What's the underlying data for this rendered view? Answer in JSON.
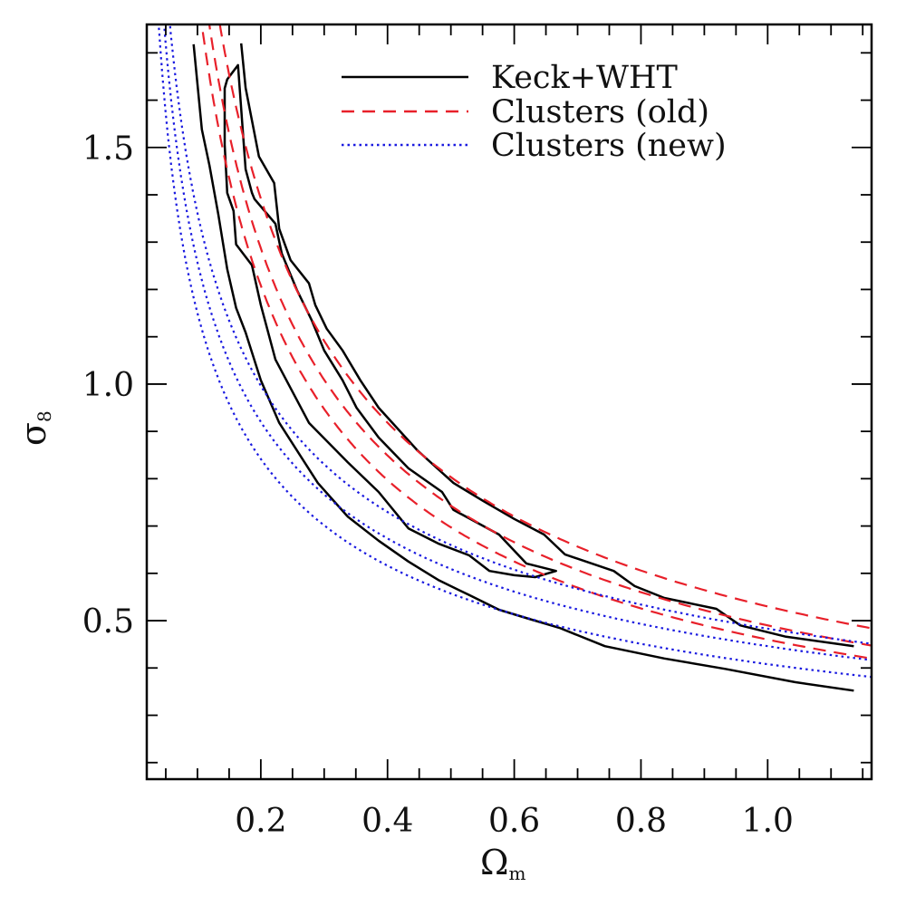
{
  "chart_data": {
    "type": "line",
    "title": "",
    "xlabel": "Ω",
    "xlabel_sub": "m",
    "ylabel": "σ",
    "ylabel_sub": "8",
    "xlim": [
      0.02,
      1.164
    ],
    "ylim": [
      0.165,
      1.76
    ],
    "xticks": [
      0.2,
      0.4,
      0.6,
      0.8,
      1.0
    ],
    "xtick_labels": [
      "0.2",
      "0.4",
      "0.6",
      "0.8",
      "1.0"
    ],
    "x_minor_step": 0.05,
    "yticks": [
      0.5,
      1.0,
      1.5
    ],
    "ytick_labels": [
      "0.5",
      "1.0",
      "1.5"
    ],
    "y_minor_step": 0.1,
    "grid": false,
    "legend_position": "top-right",
    "legend": [
      {
        "label": "Keck+WHT",
        "style": "solid",
        "color": "#000000"
      },
      {
        "label": "Clusters (old)",
        "style": "dashed",
        "color": "#e8202a"
      },
      {
        "label": "Clusters (new)",
        "style": "dotted",
        "color": "#1a1ae0"
      }
    ],
    "series": [
      {
        "name": "Keck+WHT outer contour (lower branch)",
        "group": "Keck+WHT",
        "closed": false,
        "points": [
          [
            0.094,
            1.718
          ],
          [
            0.107,
            1.538
          ],
          [
            0.119,
            1.462
          ],
          [
            0.133,
            1.358
          ],
          [
            0.147,
            1.243
          ],
          [
            0.161,
            1.161
          ],
          [
            0.176,
            1.109
          ],
          [
            0.2,
            1.008
          ],
          [
            0.229,
            0.918
          ],
          [
            0.29,
            0.791
          ],
          [
            0.337,
            0.72
          ],
          [
            0.386,
            0.669
          ],
          [
            0.433,
            0.625
          ],
          [
            0.48,
            0.586
          ],
          [
            0.529,
            0.554
          ],
          [
            0.576,
            0.523
          ],
          [
            0.623,
            0.504
          ],
          [
            0.671,
            0.485
          ],
          [
            0.743,
            0.446
          ],
          [
            0.837,
            0.42
          ],
          [
            0.933,
            0.398
          ],
          [
            1.043,
            0.37
          ],
          [
            1.136,
            0.352
          ]
        ]
      },
      {
        "name": "Keck+WHT outer contour (upper branch)",
        "group": "Keck+WHT",
        "closed": false,
        "points": [
          [
            0.169,
            1.72
          ],
          [
            0.176,
            1.626
          ],
          [
            0.186,
            1.557
          ],
          [
            0.197,
            1.481
          ],
          [
            0.221,
            1.425
          ],
          [
            0.229,
            1.328
          ],
          [
            0.247,
            1.262
          ],
          [
            0.276,
            1.213
          ],
          [
            0.286,
            1.167
          ],
          [
            0.304,
            1.117
          ],
          [
            0.329,
            1.071
          ],
          [
            0.357,
            1.008
          ],
          [
            0.386,
            0.95
          ],
          [
            0.447,
            0.86
          ],
          [
            0.504,
            0.791
          ],
          [
            0.551,
            0.753
          ],
          [
            0.6,
            0.715
          ],
          [
            0.647,
            0.682
          ],
          [
            0.68,
            0.64
          ],
          [
            0.757,
            0.605
          ],
          [
            0.79,
            0.573
          ],
          [
            0.837,
            0.548
          ],
          [
            0.919,
            0.525
          ],
          [
            0.957,
            0.49
          ],
          [
            1.029,
            0.466
          ],
          [
            1.136,
            0.446
          ]
        ]
      },
      {
        "name": "Keck+WHT inner contour",
        "group": "Keck+WHT",
        "closed": true,
        "points": [
          [
            0.164,
            1.674
          ],
          [
            0.147,
            1.644
          ],
          [
            0.143,
            1.625
          ],
          [
            0.143,
            1.506
          ],
          [
            0.147,
            1.404
          ],
          [
            0.157,
            1.366
          ],
          [
            0.161,
            1.295
          ],
          [
            0.186,
            1.251
          ],
          [
            0.2,
            1.167
          ],
          [
            0.223,
            1.052
          ],
          [
            0.276,
            0.918
          ],
          [
            0.337,
            0.835
          ],
          [
            0.386,
            0.772
          ],
          [
            0.433,
            0.695
          ],
          [
            0.48,
            0.663
          ],
          [
            0.529,
            0.638
          ],
          [
            0.561,
            0.605
          ],
          [
            0.6,
            0.596
          ],
          [
            0.633,
            0.592
          ],
          [
            0.666,
            0.605
          ],
          [
            0.619,
            0.621
          ],
          [
            0.576,
            0.682
          ],
          [
            0.504,
            0.734
          ],
          [
            0.486,
            0.772
          ],
          [
            0.433,
            0.822
          ],
          [
            0.386,
            0.887
          ],
          [
            0.351,
            0.95
          ],
          [
            0.329,
            1.008
          ],
          [
            0.3,
            1.071
          ],
          [
            0.28,
            1.136
          ],
          [
            0.257,
            1.199
          ],
          [
            0.233,
            1.276
          ],
          [
            0.223,
            1.339
          ],
          [
            0.19,
            1.391
          ],
          [
            0.186,
            1.404
          ],
          [
            0.176,
            1.454
          ],
          [
            0.169,
            1.582
          ]
        ]
      },
      {
        "name": "Clusters (old) lower",
        "group": "Clusters (old)",
        "model": "sigma8 = A * Omega^-alpha",
        "A": 0.46,
        "alpha": 0.6,
        "x_range": [
          0.1,
          1.164
        ]
      },
      {
        "name": "Clusters (old) central",
        "group": "Clusters (old)",
        "model": "sigma8 = A * Omega^-alpha",
        "A": 0.49,
        "alpha": 0.6,
        "x_range": [
          0.1,
          1.164
        ]
      },
      {
        "name": "Clusters (old) upper",
        "group": "Clusters (old)",
        "model": "sigma8 = A * Omega^-alpha",
        "A": 0.53,
        "alpha": 0.6,
        "x_range": [
          0.1,
          1.164
        ]
      },
      {
        "name": "Clusters (new) lower",
        "group": "Clusters (new)",
        "model": "sigma8 = A * Omega^-alpha",
        "A": 0.408,
        "alpha": 0.45,
        "x_range": [
          0.03,
          1.164
        ]
      },
      {
        "name": "Clusters (new) central",
        "group": "Clusters (new)",
        "model": "sigma8 = A * Omega^-alpha",
        "A": 0.446,
        "alpha": 0.45,
        "x_range": [
          0.03,
          1.164
        ]
      },
      {
        "name": "Clusters (new) upper",
        "group": "Clusters (new)",
        "model": "sigma8 = A * Omega^-alpha",
        "A": 0.483,
        "alpha": 0.45,
        "x_range": [
          0.03,
          1.164
        ]
      }
    ]
  }
}
